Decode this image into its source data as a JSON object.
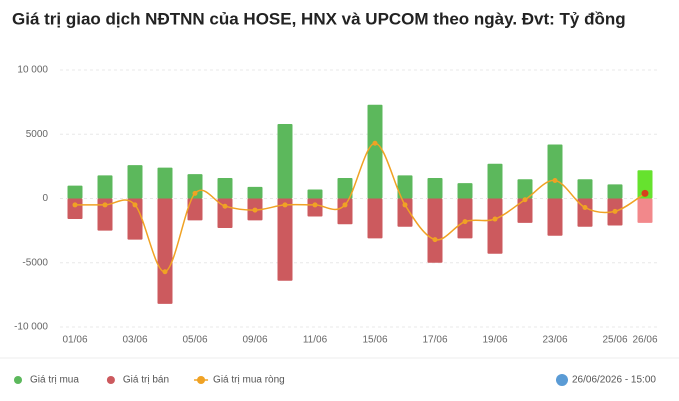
{
  "chart_data": {
    "type": "bar_line",
    "title": "Giá trị giao dịch NĐTNN của HOSE, HNX và UPCOM theo ngày. Đvt: Tỷ đồng",
    "categories": [
      "01/06",
      null,
      "03/06",
      null,
      "05/06",
      null,
      "09/06",
      null,
      "11/06",
      null,
      "15/06",
      null,
      "17/06",
      null,
      "19/06",
      null,
      "23/06",
      null,
      "25/06",
      "26/06"
    ],
    "series": [
      {
        "name": "Giá trị mua",
        "kind": "bar",
        "color": "#5cb85c",
        "highlight_color": "#66e22e",
        "values": [
          1000,
          1800,
          2600,
          2400,
          1900,
          1600,
          900,
          5800,
          700,
          1600,
          7300,
          1800,
          1600,
          1200,
          2700,
          1500,
          4200,
          1500,
          1100,
          2200
        ]
      },
      {
        "name": "Giá trị bán",
        "kind": "bar",
        "color": "#cc5a5e",
        "highlight_color": "#f2888b",
        "values": [
          -1600,
          -2500,
          -3200,
          -8200,
          -1700,
          -2300,
          -1700,
          -6400,
          -1400,
          -2000,
          -3100,
          -2200,
          -5000,
          -3100,
          -4300,
          -1900,
          -2900,
          -2200,
          -2100,
          -1900
        ]
      },
      {
        "name": "Giá trị mua ròng",
        "kind": "line",
        "color": "#f0a224",
        "highlight_color": "#d8401c",
        "values": [
          -500,
          -500,
          -500,
          -5700,
          400,
          -600,
          -900,
          -500,
          -500,
          -500,
          4300,
          -500,
          -3200,
          -1800,
          -1600,
          -100,
          1400,
          -700,
          -1000,
          400
        ]
      }
    ],
    "ylim": [
      -10000,
      10000
    ],
    "yticks": [
      {
        "value": 10000,
        "label": "10 000"
      },
      5000,
      0,
      -5000,
      {
        "value": -10000,
        "label": "-10 000"
      }
    ],
    "grid": true,
    "timestamp": "26/06/2026 - 15:00"
  }
}
